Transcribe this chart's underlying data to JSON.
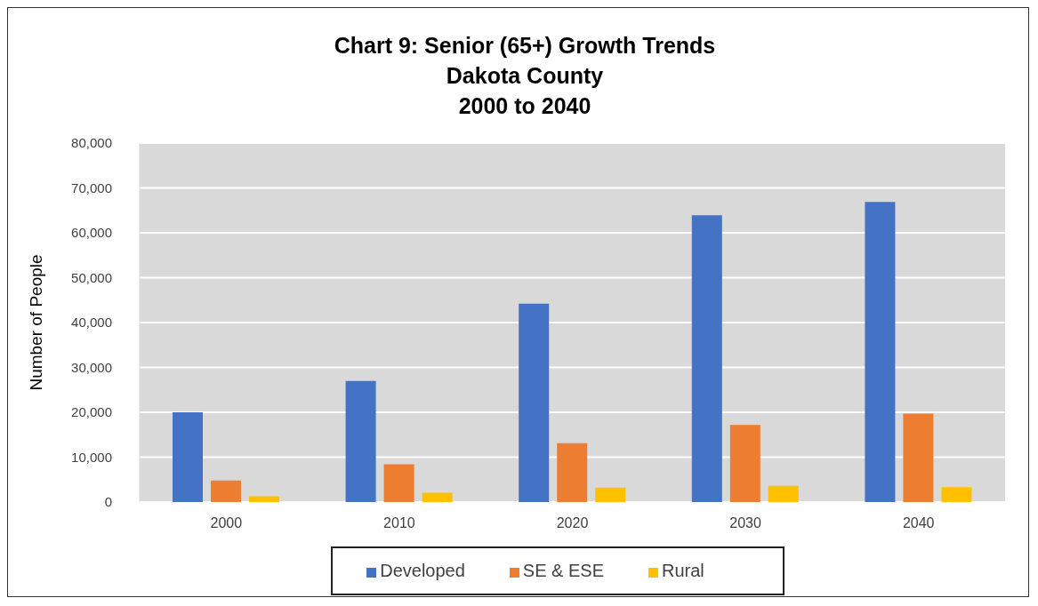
{
  "chart_data": {
    "type": "bar",
    "title": "Chart 9: Senior (65+) Growth Trends\nDakota County\n2000 to 2040",
    "ylabel": "Number of People",
    "categories": [
      "2000",
      "2010",
      "2020",
      "2030",
      "2040"
    ],
    "series": [
      {
        "name": "Developed",
        "color": "#4472c4",
        "values": [
          20000,
          27000,
          44200,
          63900,
          66900
        ]
      },
      {
        "name": "SE & ESE",
        "color": "#ed7d31",
        "values": [
          4800,
          8400,
          13100,
          17200,
          19700
        ]
      },
      {
        "name": "Rural",
        "color": "#ffc000",
        "values": [
          1300,
          2100,
          3200,
          3600,
          3300
        ]
      }
    ],
    "ylim": [
      0,
      80000
    ],
    "yticks": [
      0,
      {
        "value": 10000,
        "label": "10,000"
      },
      {
        "value": 20000,
        "label": "20,000"
      },
      {
        "value": 30000,
        "label": "30,000"
      },
      {
        "value": 40000,
        "label": "40,000"
      },
      {
        "value": 50000,
        "label": "50,000"
      },
      {
        "value": 60000,
        "label": "60,000"
      },
      {
        "value": 70000,
        "label": "70,000"
      },
      {
        "value": 80000,
        "label": "80,000"
      }
    ],
    "grid": "y",
    "legend": "bottom"
  }
}
